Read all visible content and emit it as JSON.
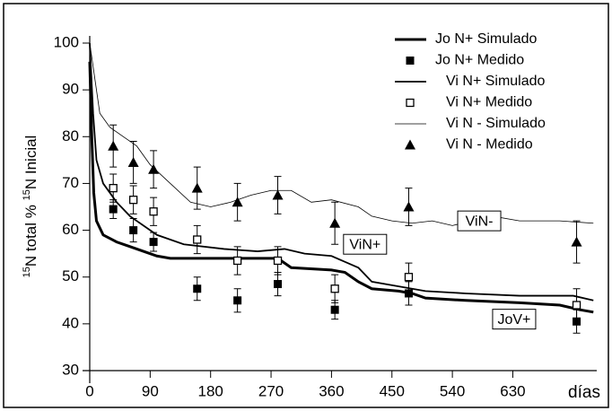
{
  "chart_data": {
    "type": "line",
    "ylabel": {
      "sup1": "15",
      "text1": "N total %",
      "sup2": "15",
      "text2": "N Inicial"
    },
    "xlabel": "días",
    "xlim": [
      0,
      755
    ],
    "ylim": [
      30,
      100
    ],
    "xticks": [
      0,
      90,
      180,
      270,
      360,
      450,
      540,
      630
    ],
    "yticks": [
      30,
      40,
      50,
      60,
      70,
      80,
      90,
      100
    ],
    "series": [
      {
        "name": "Jo N+ Simulado",
        "color": "#000000",
        "style": "line",
        "line_width": 3,
        "x": [
          0,
          3,
          6,
          10,
          20,
          40,
          60,
          80,
          100,
          120,
          200,
          280,
          300,
          360,
          380,
          400,
          420,
          460,
          480,
          500,
          560,
          640,
          700,
          730,
          750
        ],
        "values": [
          96,
          80,
          68,
          62,
          59,
          57.5,
          56.5,
          55.5,
          54.5,
          54,
          54,
          54,
          52,
          51.5,
          51,
          49,
          47.5,
          47,
          46.5,
          45.5,
          45,
          44.5,
          44,
          43,
          42.5
        ]
      },
      {
        "name": "Jo N+ Medido",
        "color": "#000000",
        "style": "points",
        "marker": "filled-square",
        "x": [
          35,
          65,
          95,
          160,
          220,
          280,
          365,
          475,
          725
        ],
        "values": [
          64.5,
          60,
          57.5,
          47.5,
          45,
          48.5,
          43,
          46.5,
          40.5
        ],
        "errors": [
          2,
          2.5,
          2,
          2.5,
          2.5,
          2.5,
          2,
          2.5,
          2.5
        ]
      },
      {
        "name": "Vi N+ Simulado",
        "color": "#000000",
        "style": "line",
        "line_width": 1.8,
        "x": [
          0,
          5,
          10,
          20,
          40,
          60,
          80,
          100,
          140,
          200,
          250,
          290,
          320,
          360,
          400,
          420,
          460,
          500,
          560,
          640,
          720,
          750
        ],
        "values": [
          100,
          85,
          75,
          70,
          66,
          63,
          61,
          59,
          57,
          56,
          55.5,
          56,
          55,
          54.5,
          52,
          49,
          48,
          47,
          46.5,
          46,
          46,
          45
        ]
      },
      {
        "name": "Vi N+ Medido",
        "color": "#000000",
        "style": "points",
        "marker": "open-square",
        "x": [
          35,
          65,
          95,
          160,
          220,
          280,
          365,
          475,
          725
        ],
        "values": [
          69,
          66.5,
          64,
          58,
          53.5,
          53.5,
          47.5,
          50,
          44
        ],
        "errors": [
          3,
          3,
          3,
          3,
          3,
          3,
          3,
          3,
          3.5
        ]
      },
      {
        "name": "Vi N - Simulado",
        "color": "#000000",
        "style": "line",
        "line_width": 0.8,
        "x": [
          0,
          5,
          15,
          30,
          50,
          70,
          90,
          120,
          150,
          180,
          210,
          240,
          270,
          300,
          330,
          360,
          400,
          420,
          450,
          480,
          510,
          540,
          570,
          600,
          640,
          700,
          750
        ],
        "values": [
          100,
          95,
          85,
          82,
          80,
          78,
          74,
          70,
          66,
          65,
          66,
          67.5,
          68.5,
          68.5,
          66,
          66.5,
          65,
          63,
          62,
          61.5,
          62,
          61,
          62,
          63,
          62,
          62,
          61.5
        ]
      },
      {
        "name": "Vi N - Medido",
        "color": "#000000",
        "style": "points",
        "marker": "triangle",
        "x": [
          35,
          65,
          95,
          160,
          220,
          280,
          365,
          475,
          725
        ],
        "values": [
          78,
          74.5,
          73,
          69,
          66,
          67.5,
          61.5,
          65,
          57.5
        ],
        "errors": [
          4.5,
          4.5,
          4,
          4.5,
          4,
          4,
          4.5,
          4,
          4.5
        ]
      }
    ],
    "annotations": [
      {
        "text": "ViN+",
        "x": 410,
        "y": 57
      },
      {
        "text": "ViN-",
        "x": 580,
        "y": 62
      },
      {
        "text": "JoV+",
        "x": 632,
        "y": 41
      }
    ]
  }
}
